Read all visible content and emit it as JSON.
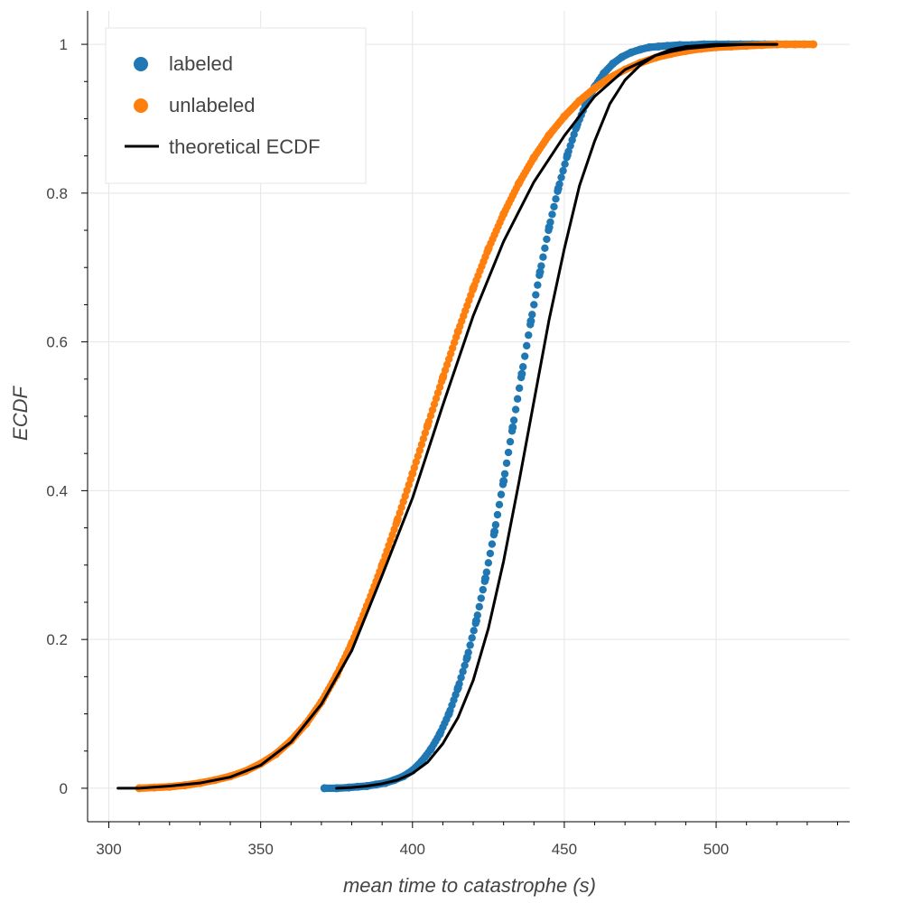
{
  "chart_data": {
    "type": "scatter",
    "title": "",
    "xlabel": "mean time to catastrophe (s)",
    "ylabel": "ECDF",
    "xlim": [
      293,
      544
    ],
    "ylim": [
      -0.045,
      1.045
    ],
    "x_ticks": [
      300,
      350,
      400,
      450,
      500
    ],
    "x_tick_labels": [
      "300",
      "350",
      "400",
      "450",
      "500"
    ],
    "y_ticks": [
      0,
      0.2,
      0.4,
      0.6,
      0.8,
      1
    ],
    "y_tick_labels": [
      "0",
      "0.2",
      "0.4",
      "0.6",
      "0.8",
      "1"
    ],
    "grid": true,
    "legend_position": "top-left",
    "series": [
      {
        "name": "labeled",
        "kind": "points",
        "color": "#1f77b4",
        "x": [
          371,
          375,
          379,
          382,
          385,
          388,
          391,
          394,
          397,
          400,
          403,
          406,
          409,
          412,
          415,
          418,
          421,
          424,
          427,
          430,
          433,
          436,
          439,
          442,
          445,
          448,
          451,
          454,
          457,
          460,
          463,
          466,
          469,
          472,
          475,
          478,
          481,
          484,
          488,
          492,
          496,
          500,
          504,
          508,
          512,
          516,
          520
        ],
        "y": [
          0.0,
          0.0,
          0.001,
          0.002,
          0.003,
          0.005,
          0.007,
          0.011,
          0.016,
          0.024,
          0.036,
          0.052,
          0.073,
          0.1,
          0.135,
          0.176,
          0.225,
          0.282,
          0.345,
          0.413,
          0.485,
          0.557,
          0.628,
          0.694,
          0.754,
          0.806,
          0.851,
          0.889,
          0.919,
          0.943,
          0.961,
          0.974,
          0.983,
          0.989,
          0.993,
          0.996,
          0.997,
          0.998,
          0.999,
          0.999,
          1.0,
          1.0,
          1.0,
          1.0,
          1.0,
          1.0,
          1.0
        ]
      },
      {
        "name": "unlabeled",
        "kind": "points",
        "color": "#ff7f0e",
        "x": [
          310,
          315,
          320,
          325,
          330,
          335,
          340,
          345,
          350,
          355,
          360,
          365,
          370,
          375,
          380,
          385,
          390,
          395,
          400,
          405,
          410,
          415,
          420,
          425,
          430,
          435,
          440,
          445,
          450,
          455,
          460,
          465,
          470,
          475,
          480,
          485,
          490,
          495,
          500,
          505,
          510,
          515,
          520,
          523,
          526,
          529,
          532
        ],
        "y": [
          0.0,
          0.001,
          0.002,
          0.004,
          0.007,
          0.011,
          0.016,
          0.023,
          0.033,
          0.046,
          0.064,
          0.087,
          0.116,
          0.152,
          0.195,
          0.245,
          0.3,
          0.36,
          0.423,
          0.488,
          0.552,
          0.614,
          0.672,
          0.725,
          0.772,
          0.813,
          0.848,
          0.878,
          0.903,
          0.924,
          0.941,
          0.955,
          0.966,
          0.975,
          0.982,
          0.987,
          0.991,
          0.994,
          0.996,
          0.997,
          0.998,
          0.999,
          1.0,
          1.0,
          1.0,
          1.0,
          1.0
        ]
      },
      {
        "name": "theoretical ECDF",
        "kind": "line",
        "color": "#000000",
        "x": [
          303,
          310,
          320,
          330,
          340,
          350,
          360,
          370,
          380,
          390,
          400,
          410,
          420,
          430,
          440,
          450,
          460,
          470,
          480,
          485,
          490,
          500,
          510,
          520
        ],
        "y": [
          0.0,
          0.0,
          0.003,
          0.007,
          0.015,
          0.031,
          0.062,
          0.113,
          0.185,
          0.286,
          0.39,
          0.515,
          0.635,
          0.735,
          0.815,
          0.877,
          0.93,
          0.966,
          0.985,
          0.99,
          0.994,
          0.998,
          1.0,
          1.0
        ]
      },
      {
        "name": "",
        "kind": "line",
        "color": "#000000",
        "x": [
          375,
          380,
          385,
          390,
          395,
          400,
          405,
          410,
          415,
          420,
          425,
          430,
          435,
          440,
          445,
          450,
          455,
          460,
          465,
          470,
          475,
          480,
          485,
          490,
          500,
          510,
          520
        ],
        "y": [
          0.0,
          0.001,
          0.003,
          0.006,
          0.011,
          0.02,
          0.035,
          0.06,
          0.095,
          0.145,
          0.215,
          0.305,
          0.41,
          0.52,
          0.63,
          0.725,
          0.81,
          0.87,
          0.92,
          0.952,
          0.972,
          0.985,
          0.993,
          0.997,
          1.0,
          1.0,
          1.0
        ]
      }
    ]
  }
}
